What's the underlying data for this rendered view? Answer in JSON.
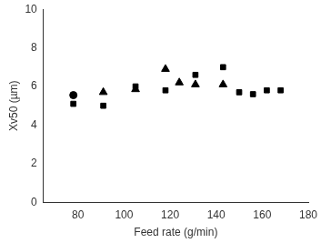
{
  "chart_data": {
    "type": "scatter",
    "x_label": "Feed rate (g/min)",
    "y_label": "Xv50 (µm)",
    "xlim": [
      65,
      180
    ],
    "xticks": [
      80,
      100,
      120,
      140,
      160,
      180
    ],
    "ylim": [
      0,
      10
    ],
    "yticks": [
      0,
      2,
      4,
      6,
      8,
      10
    ],
    "grid": false,
    "series": [
      {
        "marker": "circle",
        "color": "#000000",
        "x": [
          78
        ],
        "values": [
          5.55
        ]
      },
      {
        "marker": "triangle",
        "color": "#000000",
        "x": [
          91,
          105,
          118,
          124,
          131,
          143
        ],
        "values": [
          5.7,
          5.85,
          6.9,
          6.2,
          6.1,
          6.1
        ]
      },
      {
        "marker": "square",
        "color": "#000000",
        "x": [
          78,
          91,
          105,
          118,
          131,
          143,
          150,
          156,
          162,
          168
        ],
        "values": [
          5.1,
          5.0,
          6.0,
          5.8,
          6.6,
          7.0,
          5.7,
          5.6,
          5.8,
          5.8
        ]
      }
    ]
  }
}
